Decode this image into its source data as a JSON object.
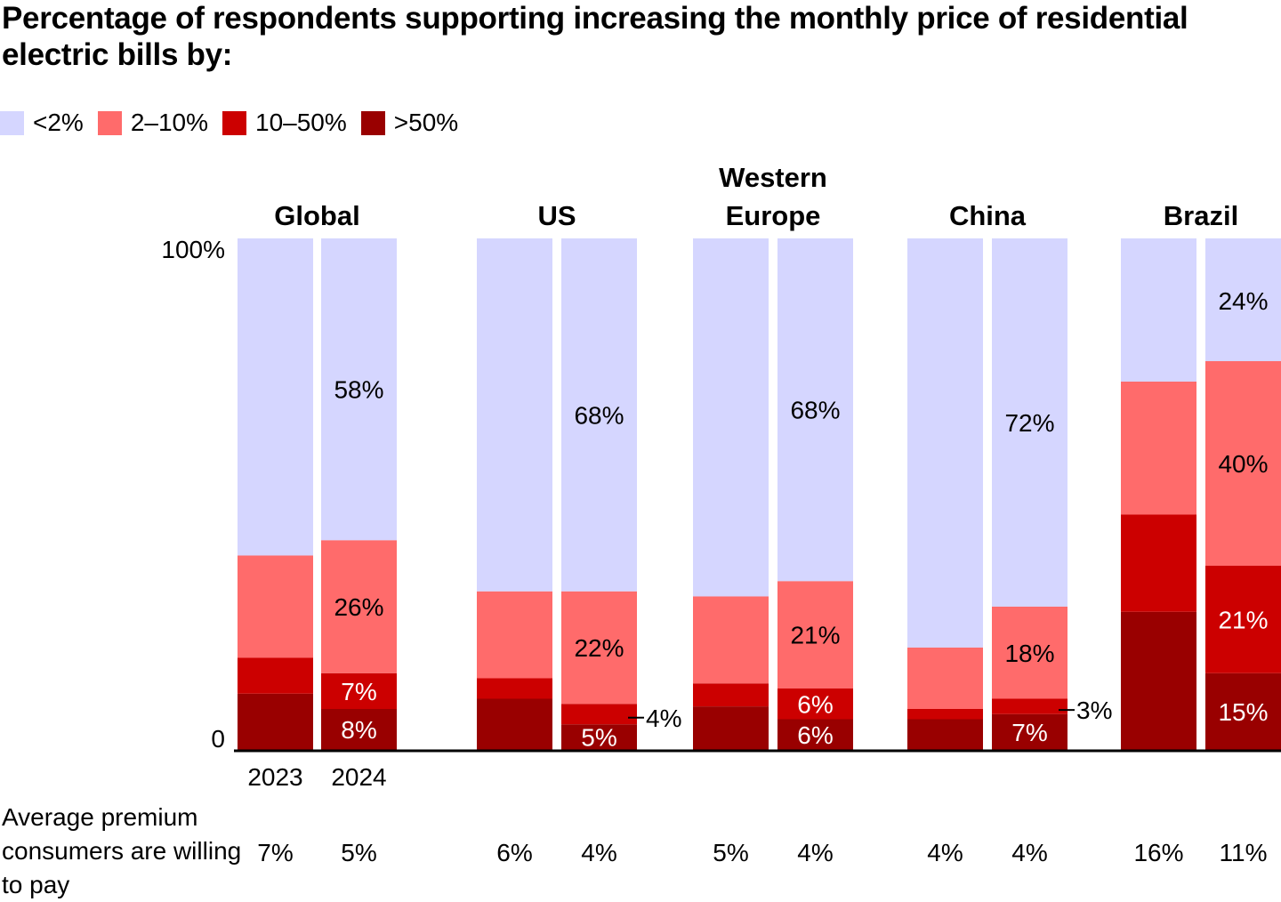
{
  "chart_data": {
    "type": "bar",
    "stacked": true,
    "title": "Percentage of respondents supporting increasing the monthly price of residential electric bills by:",
    "legend_position": "top-left",
    "series": [
      {
        "name": "<2%",
        "color": "#d5d6ff"
      },
      {
        "name": "2–10%",
        "color": "#ff6b6b"
      },
      {
        "name": "10–50%",
        "color": "#cc0000"
      },
      {
        "name": ">50%",
        "color": "#990000"
      }
    ],
    "ylim": [
      0,
      100
    ],
    "ytick_labels": [
      "0",
      "100%"
    ],
    "years": [
      "2023",
      "2024"
    ],
    "groups": [
      {
        "name": "Global",
        "bars": [
          {
            "year": "2023",
            "values": [
              62,
              20,
              7,
              11
            ],
            "labels": [
              "",
              "",
              "",
              ""
            ],
            "premium": "7%"
          },
          {
            "year": "2024",
            "values": [
              58,
              26,
              7,
              8
            ],
            "labels": [
              "58%",
              "26%",
              "7%",
              "8%"
            ],
            "premium": "5%"
          }
        ]
      },
      {
        "name": "US",
        "bars": [
          {
            "year": "2023",
            "values": [
              69,
              17,
              4,
              10
            ],
            "labels": [
              "",
              "",
              "",
              ""
            ],
            "premium": "6%"
          },
          {
            "year": "2024",
            "values": [
              68,
              22,
              4,
              5
            ],
            "labels": [
              "68%",
              "22%",
              "4%",
              "5%"
            ],
            "premium": "4%",
            "outside_label_series": 2
          }
        ]
      },
      {
        "name": "Western Europe",
        "bars": [
          {
            "year": "2023",
            "values": [
              70,
              17,
              4.5,
              8.5
            ],
            "labels": [
              "",
              "",
              "",
              ""
            ],
            "premium": "5%"
          },
          {
            "year": "2024",
            "values": [
              68,
              21,
              6,
              6
            ],
            "labels": [
              "68%",
              "21%",
              "6%",
              "6%"
            ],
            "premium": "4%"
          }
        ]
      },
      {
        "name": "China",
        "bars": [
          {
            "year": "2023",
            "values": [
              79,
              12,
              2,
              6
            ],
            "labels": [
              "",
              "",
              "",
              ""
            ],
            "premium": "4%"
          },
          {
            "year": "2024",
            "values": [
              72,
              18,
              3,
              7
            ],
            "labels": [
              "72%",
              "18%",
              "3%",
              "7%"
            ],
            "premium": "4%",
            "outside_label_series": 2
          }
        ]
      },
      {
        "name": "Brazil",
        "bars": [
          {
            "year": "2023",
            "values": [
              28,
              26,
              19,
              27
            ],
            "labels": [
              "",
              "",
              "",
              ""
            ],
            "premium": "16%"
          },
          {
            "year": "2024",
            "values": [
              24,
              40,
              21,
              15
            ],
            "labels": [
              "24%",
              "40%",
              "21%",
              "15%"
            ],
            "premium": "11%"
          }
        ]
      }
    ],
    "premium_label": "Average premium consumers are willing to pay"
  }
}
